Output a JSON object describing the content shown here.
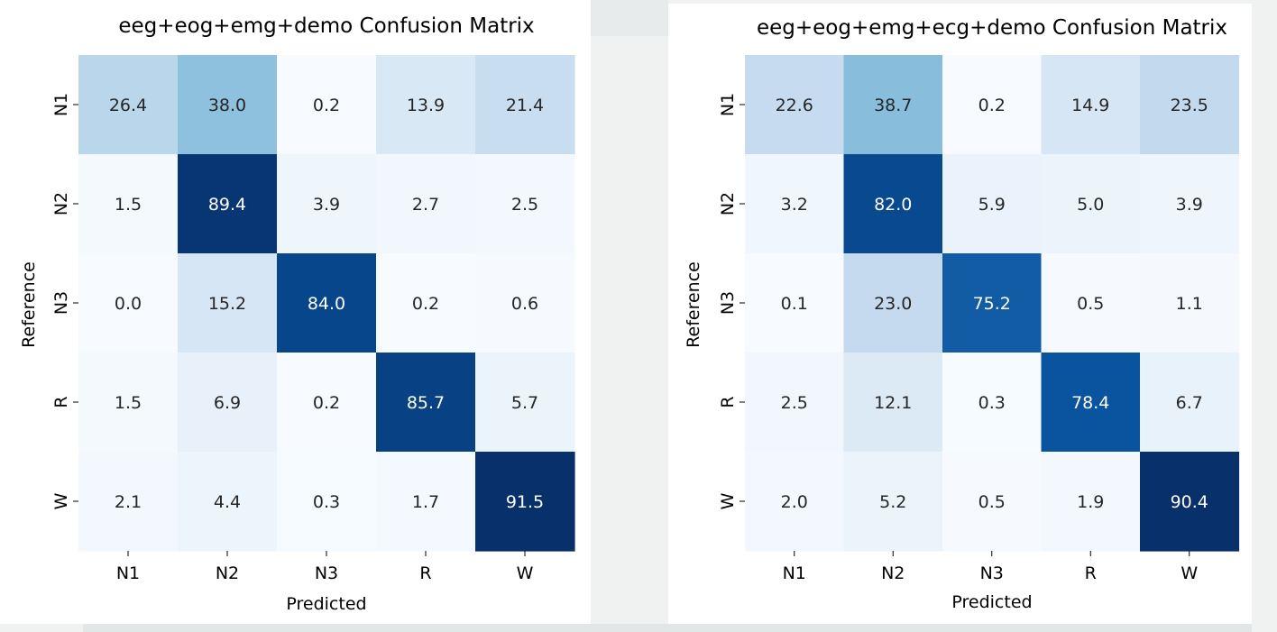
{
  "chart_data": [
    {
      "type": "heatmap",
      "title": "eeg+eog+emg+demo Confusion Matrix",
      "xlabel": "Predicted",
      "ylabel": "Reference",
      "x_categories": [
        "N1",
        "N2",
        "N3",
        "R",
        "W"
      ],
      "y_categories": [
        "N1",
        "N2",
        "N3",
        "R",
        "W"
      ],
      "values": [
        [
          26.4,
          38.0,
          0.2,
          13.9,
          21.4
        ],
        [
          1.5,
          89.4,
          3.9,
          2.7,
          2.5
        ],
        [
          0.0,
          15.2,
          84.0,
          0.2,
          0.6
        ],
        [
          1.5,
          6.9,
          0.2,
          85.7,
          5.7
        ],
        [
          2.1,
          4.4,
          0.3,
          1.7,
          91.5
        ]
      ],
      "colormap": "Blues",
      "value_range": [
        0,
        91.5
      ]
    },
    {
      "type": "heatmap",
      "title": "eeg+eog+emg+ecg+demo Confusion Matrix",
      "xlabel": "Predicted",
      "ylabel": "Reference",
      "x_categories": [
        "N1",
        "N2",
        "N3",
        "R",
        "W"
      ],
      "y_categories": [
        "N1",
        "N2",
        "N3",
        "R",
        "W"
      ],
      "values": [
        [
          22.6,
          38.7,
          0.2,
          14.9,
          23.5
        ],
        [
          3.2,
          82.0,
          5.9,
          5.0,
          3.9
        ],
        [
          0.1,
          23.0,
          75.2,
          0.5,
          1.1
        ],
        [
          2.5,
          12.1,
          0.3,
          78.4,
          6.7
        ],
        [
          2.0,
          5.2,
          0.5,
          1.9,
          90.4
        ]
      ],
      "colormap": "Blues",
      "value_range": [
        0,
        90.4
      ]
    }
  ]
}
